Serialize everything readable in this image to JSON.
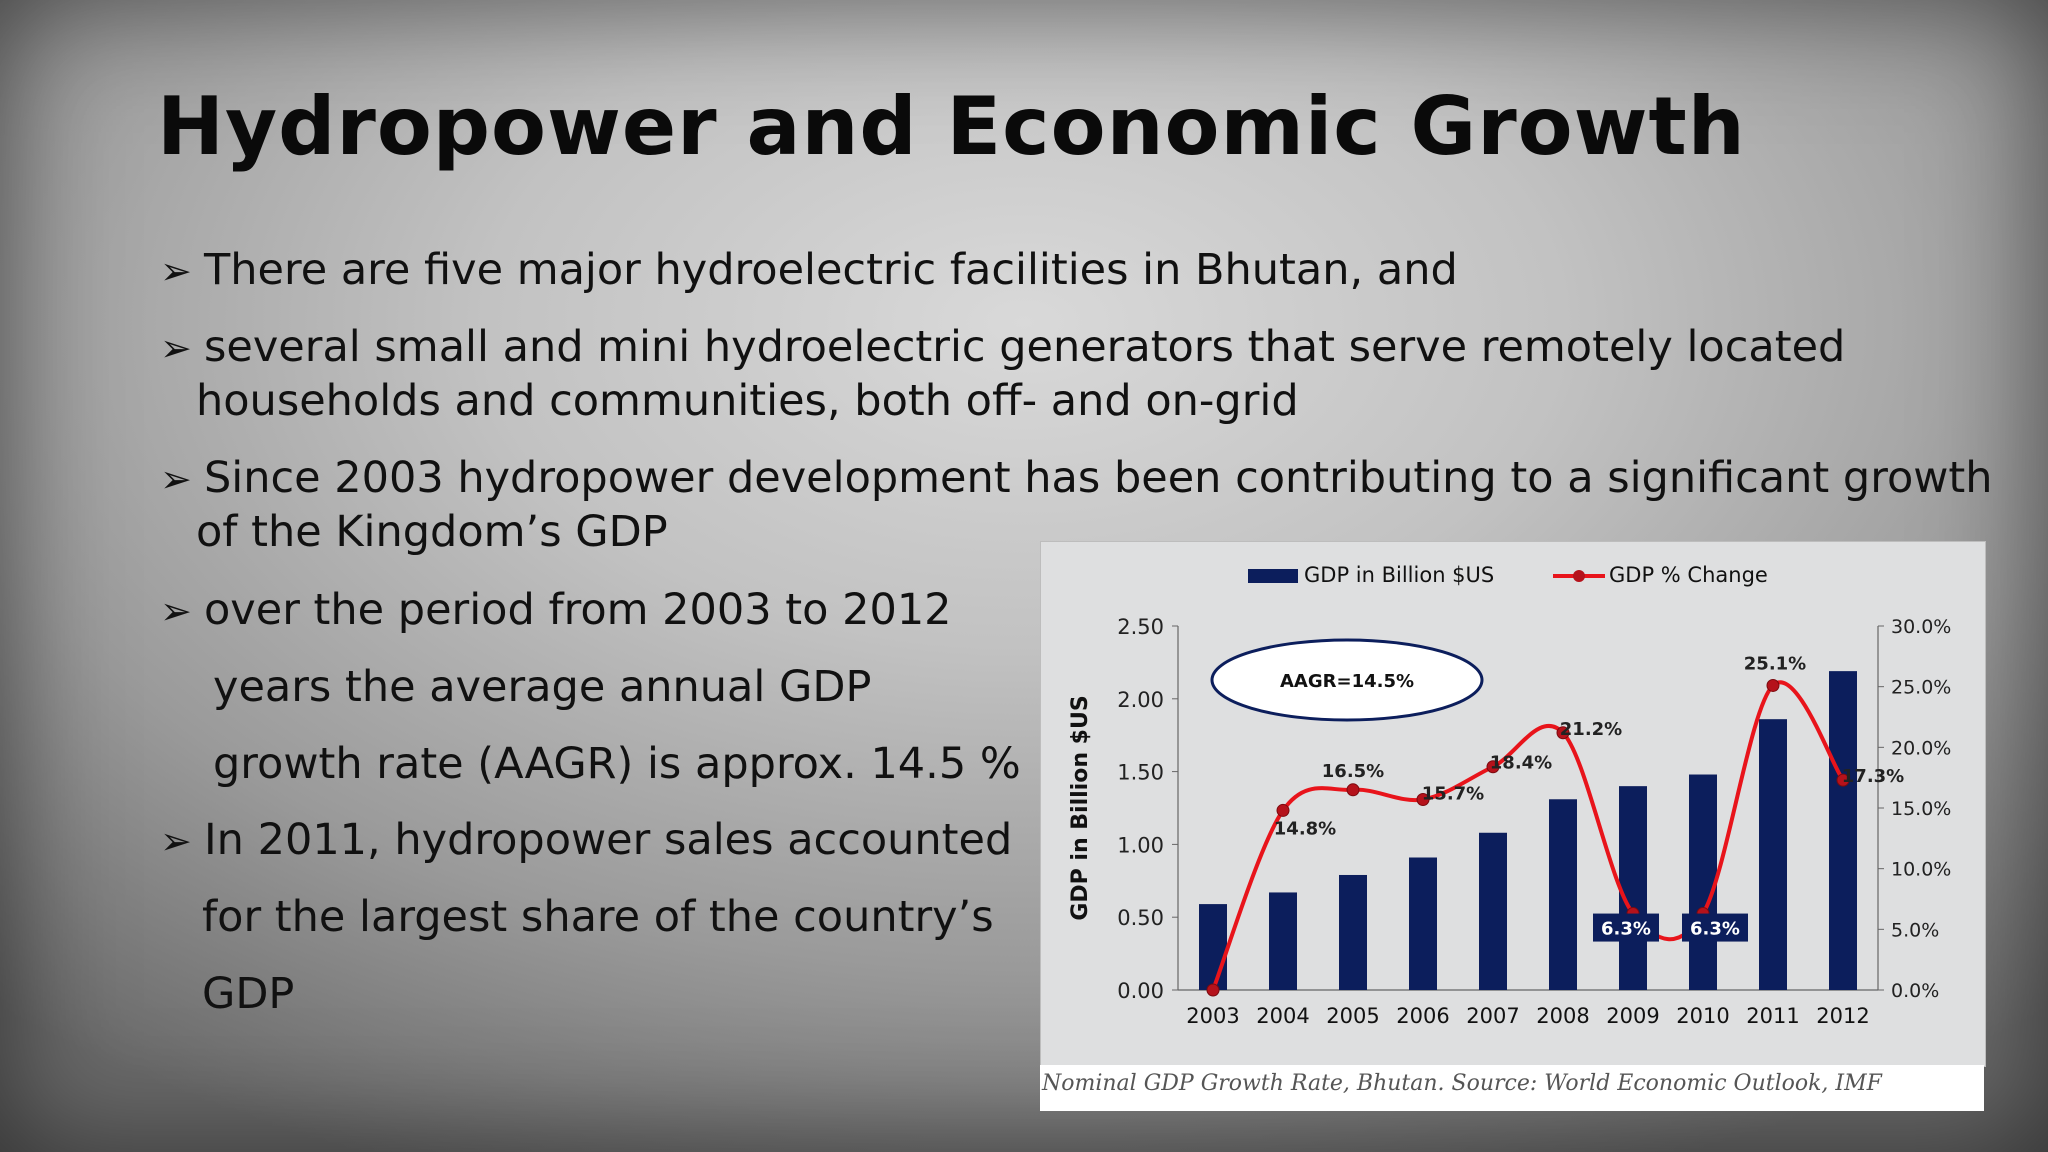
{
  "slide": {
    "title": "Hydropower and Economic Growth",
    "bullet_symbol": "➢",
    "bullets": [
      "There are five major hydroelectric facilities in Bhutan, and",
      "several small and mini hydroelectric generators that serve remotely located",
      "households and communities, both off- and on-grid",
      "Since 2003 hydropower development has been contributing to a significant growth",
      "of the Kingdom’s GDP",
      "over the period from 2003 to 2012",
      "years the average annual GDP",
      "growth rate (AAGR) is approx. 14.5 %",
      "In 2011, hydropower sales accounted",
      "for the largest share of the country’s",
      "GDP"
    ],
    "caption": "Nominal GDP Growth Rate, Bhutan. Source: World Economic Outlook, IMF"
  },
  "colors": {
    "bar": "#0c1e5c",
    "line": "#e8141b",
    "dot": "#b5121b",
    "plot_bg": "#dedfe0"
  },
  "chart_data": {
    "type": "bar",
    "categories": [
      "2003",
      "2004",
      "2005",
      "2006",
      "2007",
      "2008",
      "2009",
      "2010",
      "2011",
      "2012"
    ],
    "series": [
      {
        "name": "GDP in Billion $US",
        "type": "bar",
        "axis": "left",
        "values": [
          0.59,
          0.67,
          0.79,
          0.91,
          1.08,
          1.31,
          1.4,
          1.48,
          1.86,
          2.19
        ]
      },
      {
        "name": "GDP % Change",
        "type": "line",
        "axis": "right",
        "values": [
          0.0,
          14.8,
          16.5,
          15.7,
          18.4,
          21.2,
          6.3,
          6.3,
          25.1,
          17.3
        ],
        "labels": [
          "",
          "14.8%",
          "16.5%",
          "15.7%",
          "18.4%",
          "21.2%",
          "6.3%",
          "6.3%",
          "25.1%",
          "17.3%"
        ]
      }
    ],
    "ylabel": "GDP in Billion $US",
    "ylim": [
      0,
      2.5
    ],
    "yticks": [
      "0.00",
      "0.50",
      "1.00",
      "1.50",
      "2.00",
      "2.50"
    ],
    "y2lim": [
      0,
      30
    ],
    "y2ticks": [
      "0.0%",
      "5.0%",
      "10.0%",
      "15.0%",
      "20.0%",
      "25.0%",
      "30.0%"
    ],
    "annotation": "AAGR=14.5%",
    "grid": false,
    "legend": "top"
  }
}
